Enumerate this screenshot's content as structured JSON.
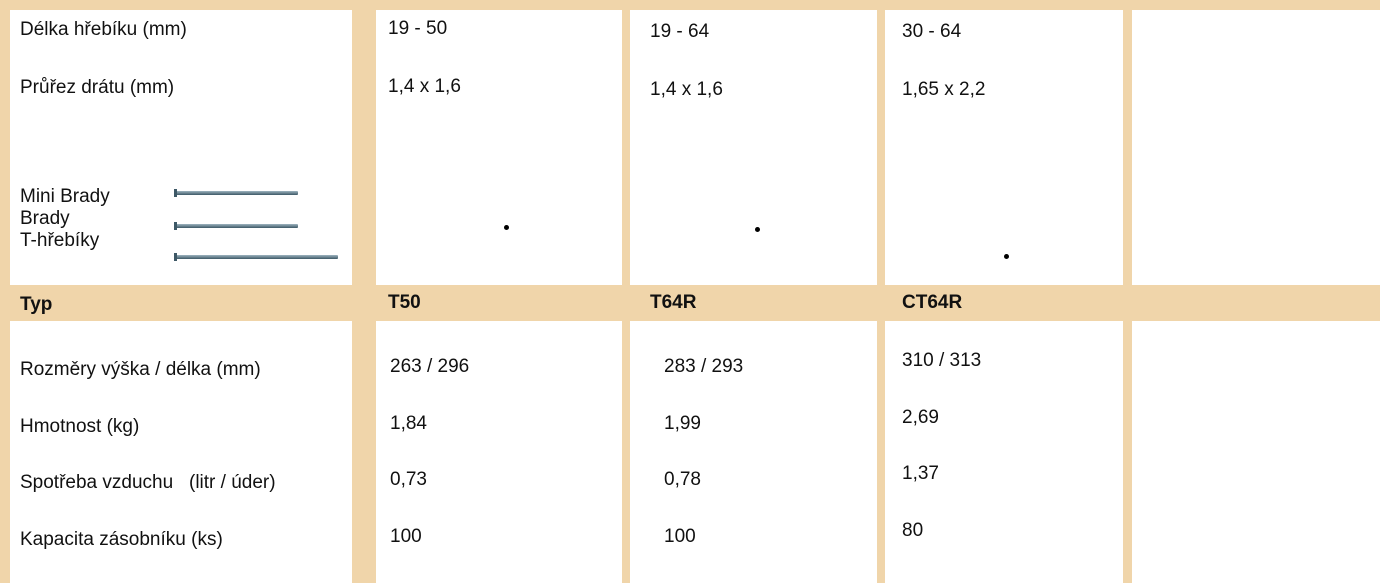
{
  "top_rows": [
    {
      "label": "Délka hřebíku (mm)",
      "values": [
        "19 - 50",
        "19 - 64",
        "30 - 64"
      ]
    },
    {
      "label": "Průřez drátu (mm)",
      "values": [
        "1,4 x 1,6",
        "1,4 x 1,6",
        "1,65 x 2,2"
      ]
    }
  ],
  "nail_types": [
    "Mini Brady",
    "Brady",
    "T-hřebíky"
  ],
  "header": {
    "label": "Typ",
    "models": [
      "T50",
      "T64R",
      "CT64R"
    ]
  },
  "rows": [
    {
      "label": "Rozměry výška / délka (mm)",
      "values": [
        "263 / 296",
        "283 / 293",
        "310 / 313"
      ]
    },
    {
      "label": "Hmotnost (kg)",
      "values": [
        "1,84",
        "1,99",
        "2,69"
      ]
    },
    {
      "label": "Spotřeba vzduchu   (litr / úder)",
      "values": [
        "0,73",
        "0,78",
        "1,37"
      ]
    },
    {
      "label": "Kapacita zásobníku (ks)",
      "values": [
        "100",
        "100",
        "80"
      ]
    }
  ]
}
